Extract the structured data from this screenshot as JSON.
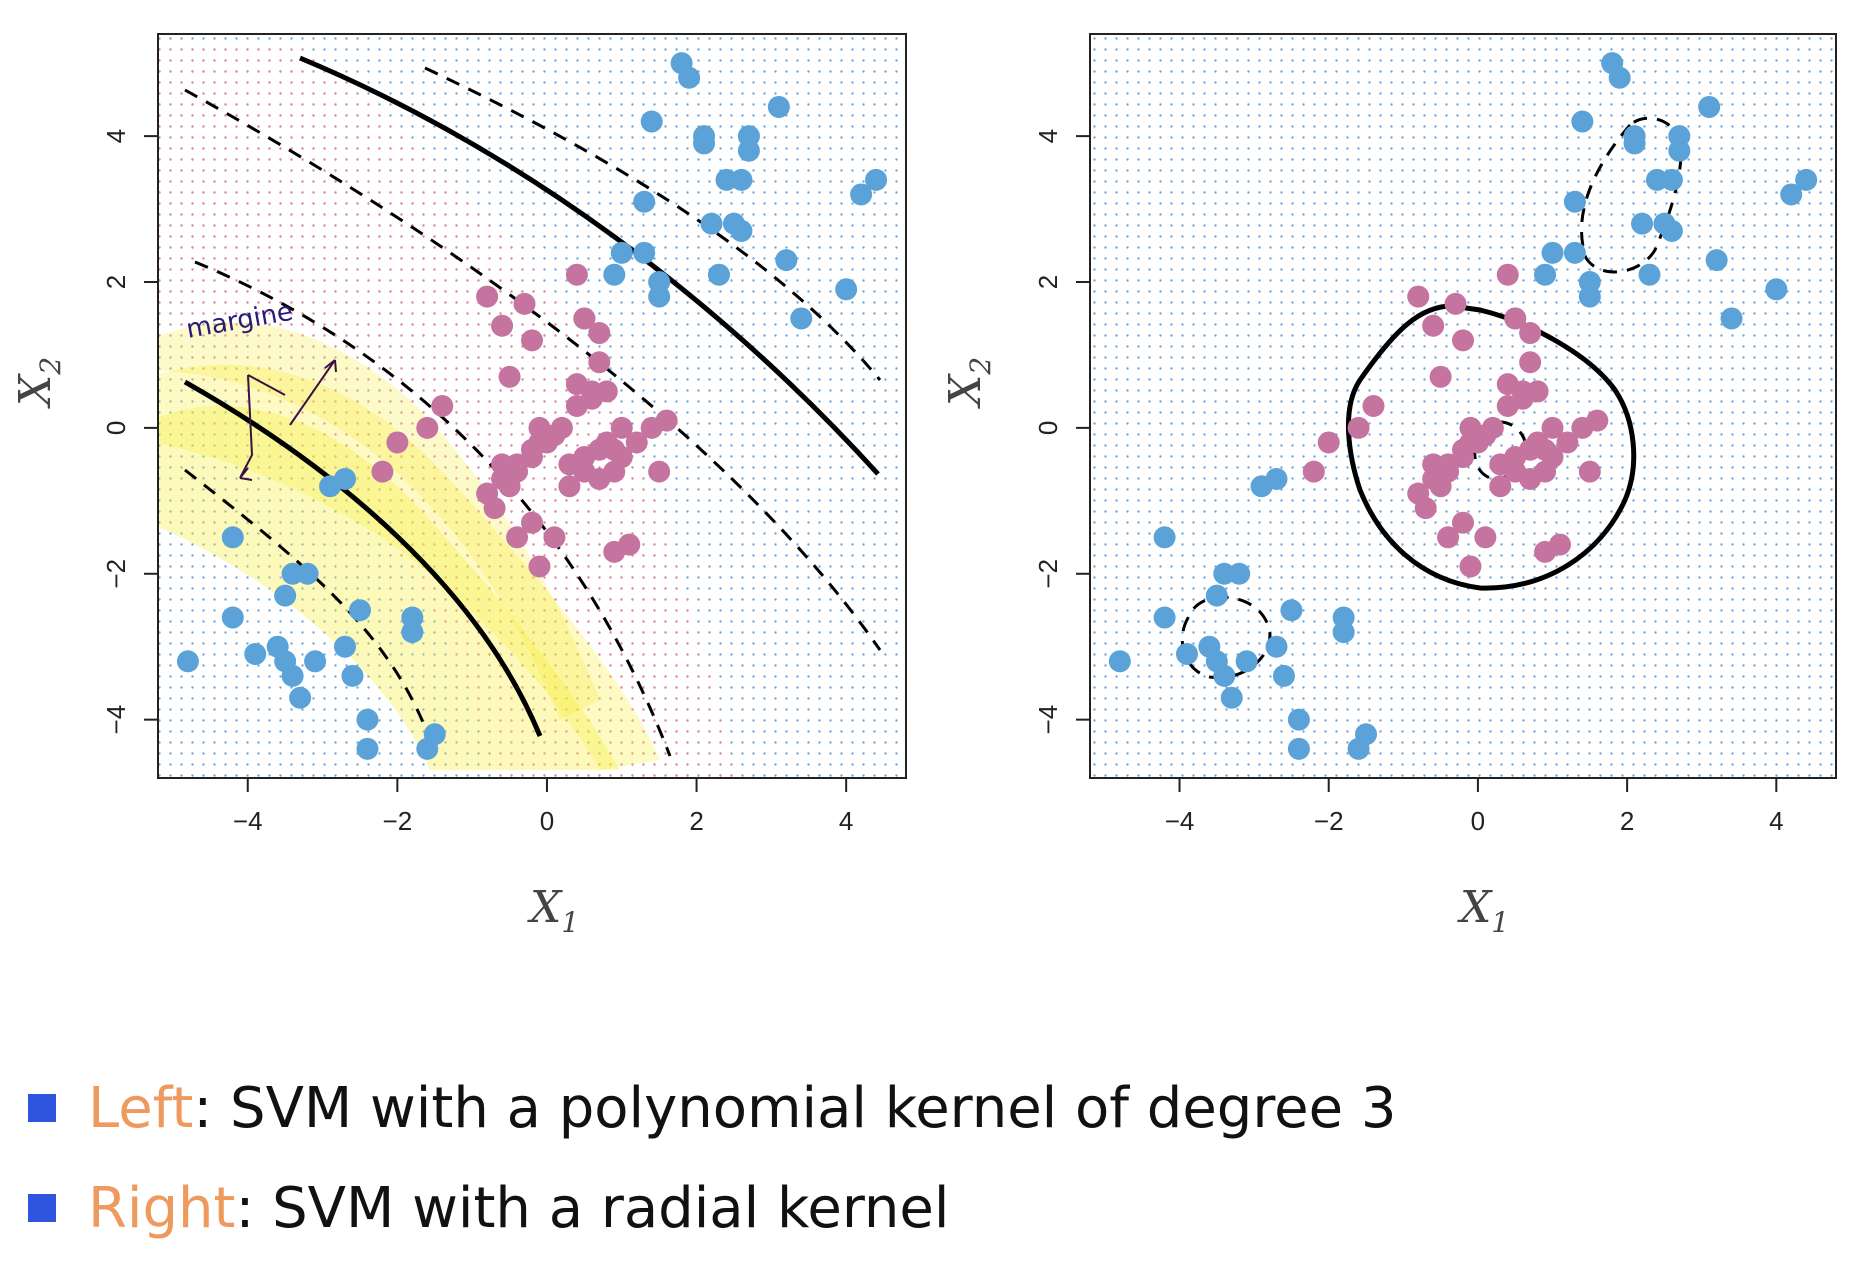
{
  "chart_data": [
    {
      "type": "scatter",
      "title": "",
      "xlabel": "X",
      "xlabel_sub": "1",
      "ylabel": "X",
      "ylabel_sub": "2",
      "xlim": [
        -5.2,
        4.8
      ],
      "ylim": [
        -4.8,
        5.4
      ],
      "xticks": [
        -4,
        -2,
        0,
        2,
        4
      ],
      "yticks": [
        -4,
        -2,
        0,
        2,
        4
      ],
      "xtick_labels": [
        "−4",
        "−2",
        "0",
        "2",
        "4"
      ],
      "ytick_labels": [
        "−4",
        "−2",
        "0",
        "2",
        "4"
      ],
      "grid": true,
      "background_grid_colors": {
        "class_a": "#6fa8dc",
        "class_b": "#e58aa0"
      },
      "series": [
        {
          "color": "#5aa2d8",
          "x": [
            1.8,
            1.9,
            2.1,
            2.1,
            2.7,
            2.7,
            3.1,
            1.4,
            1.3,
            2.4,
            2.6,
            2.2,
            2.5,
            2.6,
            2.3,
            4.4,
            4.2,
            3.2,
            4.0,
            3.4,
            1.0,
            1.3,
            1.5,
            1.5,
            0.9,
            0.5,
            -4.2,
            -4.8,
            -4.2,
            -3.6,
            -3.9,
            -3.5,
            -3.4,
            -3.5,
            -3.3,
            -3.1,
            -2.7,
            -2.6,
            -2.4,
            -2.4,
            -1.6,
            -1.5,
            -1.8,
            -1.8,
            -2.5,
            -2.7,
            -3.2,
            -3.4,
            -2.9
          ],
          "y": [
            5.0,
            4.8,
            4.0,
            3.9,
            4.0,
            3.8,
            4.4,
            4.2,
            3.1,
            3.4,
            3.4,
            2.8,
            2.8,
            2.7,
            2.1,
            3.4,
            3.2,
            2.3,
            1.9,
            1.5,
            2.4,
            2.4,
            2.0,
            1.8,
            2.1,
            1.5,
            -1.5,
            -3.2,
            -2.6,
            -3.0,
            -3.1,
            -3.2,
            -3.4,
            -2.3,
            -3.7,
            -3.2,
            -3.0,
            -3.4,
            -4.0,
            -4.4,
            -4.4,
            -4.2,
            -2.8,
            -2.6,
            -2.5,
            -0.7,
            -2.0,
            -2.0,
            -0.8
          ]
        },
        {
          "color": "#c4749f",
          "x": [
            -0.8,
            -0.6,
            -0.3,
            -0.2,
            -0.5,
            0.4,
            0.5,
            0.7,
            -0.1,
            0.2,
            0.4,
            0.6,
            0.7,
            0.8,
            1.0,
            1.2,
            1.6,
            1.4,
            1.5,
            0.9,
            1.1,
            0.0,
            -0.2,
            -0.4,
            -0.6,
            -0.8,
            -0.7,
            -0.5,
            -0.4,
            -0.2,
            -0.1,
            0.1,
            0.3,
            0.5,
            0.7,
            0.8,
            1.0,
            0.9,
            0.6,
            0.4,
            -0.6,
            -0.4,
            -0.2,
            -0.1,
            0.1,
            0.3,
            0.5,
            0.7,
            0.9,
            -1.6,
            -1.4,
            -2.2,
            -2.0
          ],
          "y": [
            1.8,
            1.4,
            1.7,
            1.2,
            0.7,
            2.1,
            1.5,
            1.3,
            0.0,
            0.0,
            0.3,
            0.5,
            0.9,
            0.5,
            0.0,
            -0.2,
            0.1,
            0.0,
            -0.6,
            -1.7,
            -1.6,
            -0.2,
            -0.3,
            -0.5,
            -0.7,
            -0.9,
            -1.1,
            -0.8,
            -0.6,
            -0.4,
            -0.2,
            -0.1,
            -0.5,
            -0.6,
            -0.3,
            -0.2,
            -0.4,
            -0.6,
            0.4,
            0.6,
            -0.5,
            -1.5,
            -1.3,
            -1.9,
            -1.5,
            -0.8,
            -0.4,
            -0.7,
            -0.3,
            0.0,
            0.3,
            -0.6,
            -0.2
          ]
        }
      ],
      "boundary_style": "black solid decision curves with dashed margin curves",
      "annotation": "margine",
      "highlight_color": "#f7ee3c"
    },
    {
      "type": "scatter",
      "title": "",
      "xlabel": "X",
      "xlabel_sub": "1",
      "ylabel": "X",
      "ylabel_sub": "2",
      "xlim": [
        -5.2,
        4.8
      ],
      "ylim": [
        -4.8,
        5.4
      ],
      "xticks": [
        -4,
        -2,
        0,
        2,
        4
      ],
      "yticks": [
        -4,
        -2,
        0,
        2,
        4
      ],
      "xtick_labels": [
        "−4",
        "−2",
        "0",
        "2",
        "4"
      ],
      "ytick_labels": [
        "−4",
        "−2",
        "0",
        "2",
        "4"
      ],
      "grid": true,
      "background_grid_colors": {
        "class_a": "#6fa8dc"
      },
      "series": [
        {
          "color": "#5aa2d8",
          "x": [
            1.8,
            1.9,
            2.1,
            2.1,
            2.7,
            2.7,
            3.1,
            1.4,
            1.3,
            2.4,
            2.6,
            2.2,
            2.5,
            2.6,
            2.3,
            4.4,
            4.2,
            3.2,
            4.0,
            3.4,
            1.0,
            1.3,
            1.5,
            1.5,
            0.9,
            0.5,
            -4.2,
            -4.8,
            -4.2,
            -3.6,
            -3.9,
            -3.5,
            -3.4,
            -3.5,
            -3.3,
            -3.1,
            -2.7,
            -2.6,
            -2.4,
            -2.4,
            -1.6,
            -1.5,
            -1.8,
            -1.8,
            -2.5,
            -2.7,
            -3.2,
            -3.4,
            -2.9
          ],
          "y": [
            5.0,
            4.8,
            4.0,
            3.9,
            4.0,
            3.8,
            4.4,
            4.2,
            3.1,
            3.4,
            3.4,
            2.8,
            2.8,
            2.7,
            2.1,
            3.4,
            3.2,
            2.3,
            1.9,
            1.5,
            2.4,
            2.4,
            2.0,
            1.8,
            2.1,
            1.5,
            -1.5,
            -3.2,
            -2.6,
            -3.0,
            -3.1,
            -3.2,
            -3.4,
            -2.3,
            -3.7,
            -3.2,
            -3.0,
            -3.4,
            -4.0,
            -4.4,
            -4.4,
            -4.2,
            -2.8,
            -2.6,
            -2.5,
            -0.7,
            -2.0,
            -2.0,
            -0.8
          ]
        },
        {
          "color": "#c4749f",
          "x": [
            -0.8,
            -0.6,
            -0.3,
            -0.2,
            -0.5,
            0.4,
            0.5,
            0.7,
            -0.1,
            0.2,
            0.4,
            0.6,
            0.7,
            0.8,
            1.0,
            1.2,
            1.6,
            1.4,
            1.5,
            0.9,
            1.1,
            0.0,
            -0.2,
            -0.4,
            -0.6,
            -0.8,
            -0.7,
            -0.5,
            -0.4,
            -0.2,
            -0.1,
            0.1,
            0.3,
            0.5,
            0.7,
            0.8,
            1.0,
            0.9,
            0.6,
            0.4,
            -0.6,
            -0.4,
            -0.2,
            -0.1,
            0.1,
            0.3,
            0.5,
            0.7,
            0.9,
            -1.6,
            -1.4,
            -2.2,
            -2.0
          ],
          "y": [
            1.8,
            1.4,
            1.7,
            1.2,
            0.7,
            2.1,
            1.5,
            1.3,
            0.0,
            0.0,
            0.3,
            0.5,
            0.9,
            0.5,
            0.0,
            -0.2,
            0.1,
            0.0,
            -0.6,
            -1.7,
            -1.6,
            -0.2,
            -0.3,
            -0.5,
            -0.7,
            -0.9,
            -1.1,
            -0.8,
            -0.6,
            -0.4,
            -0.2,
            -0.1,
            -0.5,
            -0.6,
            -0.3,
            -0.2,
            -0.4,
            -0.6,
            0.4,
            0.6,
            -0.5,
            -1.5,
            -1.3,
            -1.9,
            -1.5,
            -0.8,
            -0.4,
            -0.7,
            -0.3,
            0.0,
            0.3,
            -0.6,
            -0.2
          ]
        }
      ],
      "boundary_style": "black solid closed decision curve with dashed margin curves"
    }
  ],
  "captions": [
    {
      "keyword": "Left",
      "rest": ": SVM with a polynomial kernel of degree 3"
    },
    {
      "keyword": "Right",
      "rest": ": SVM with a radial kernel"
    }
  ],
  "colors": {
    "bullet": "#2f55e0",
    "keyword": "#ee9a5f",
    "text": "#111111"
  }
}
